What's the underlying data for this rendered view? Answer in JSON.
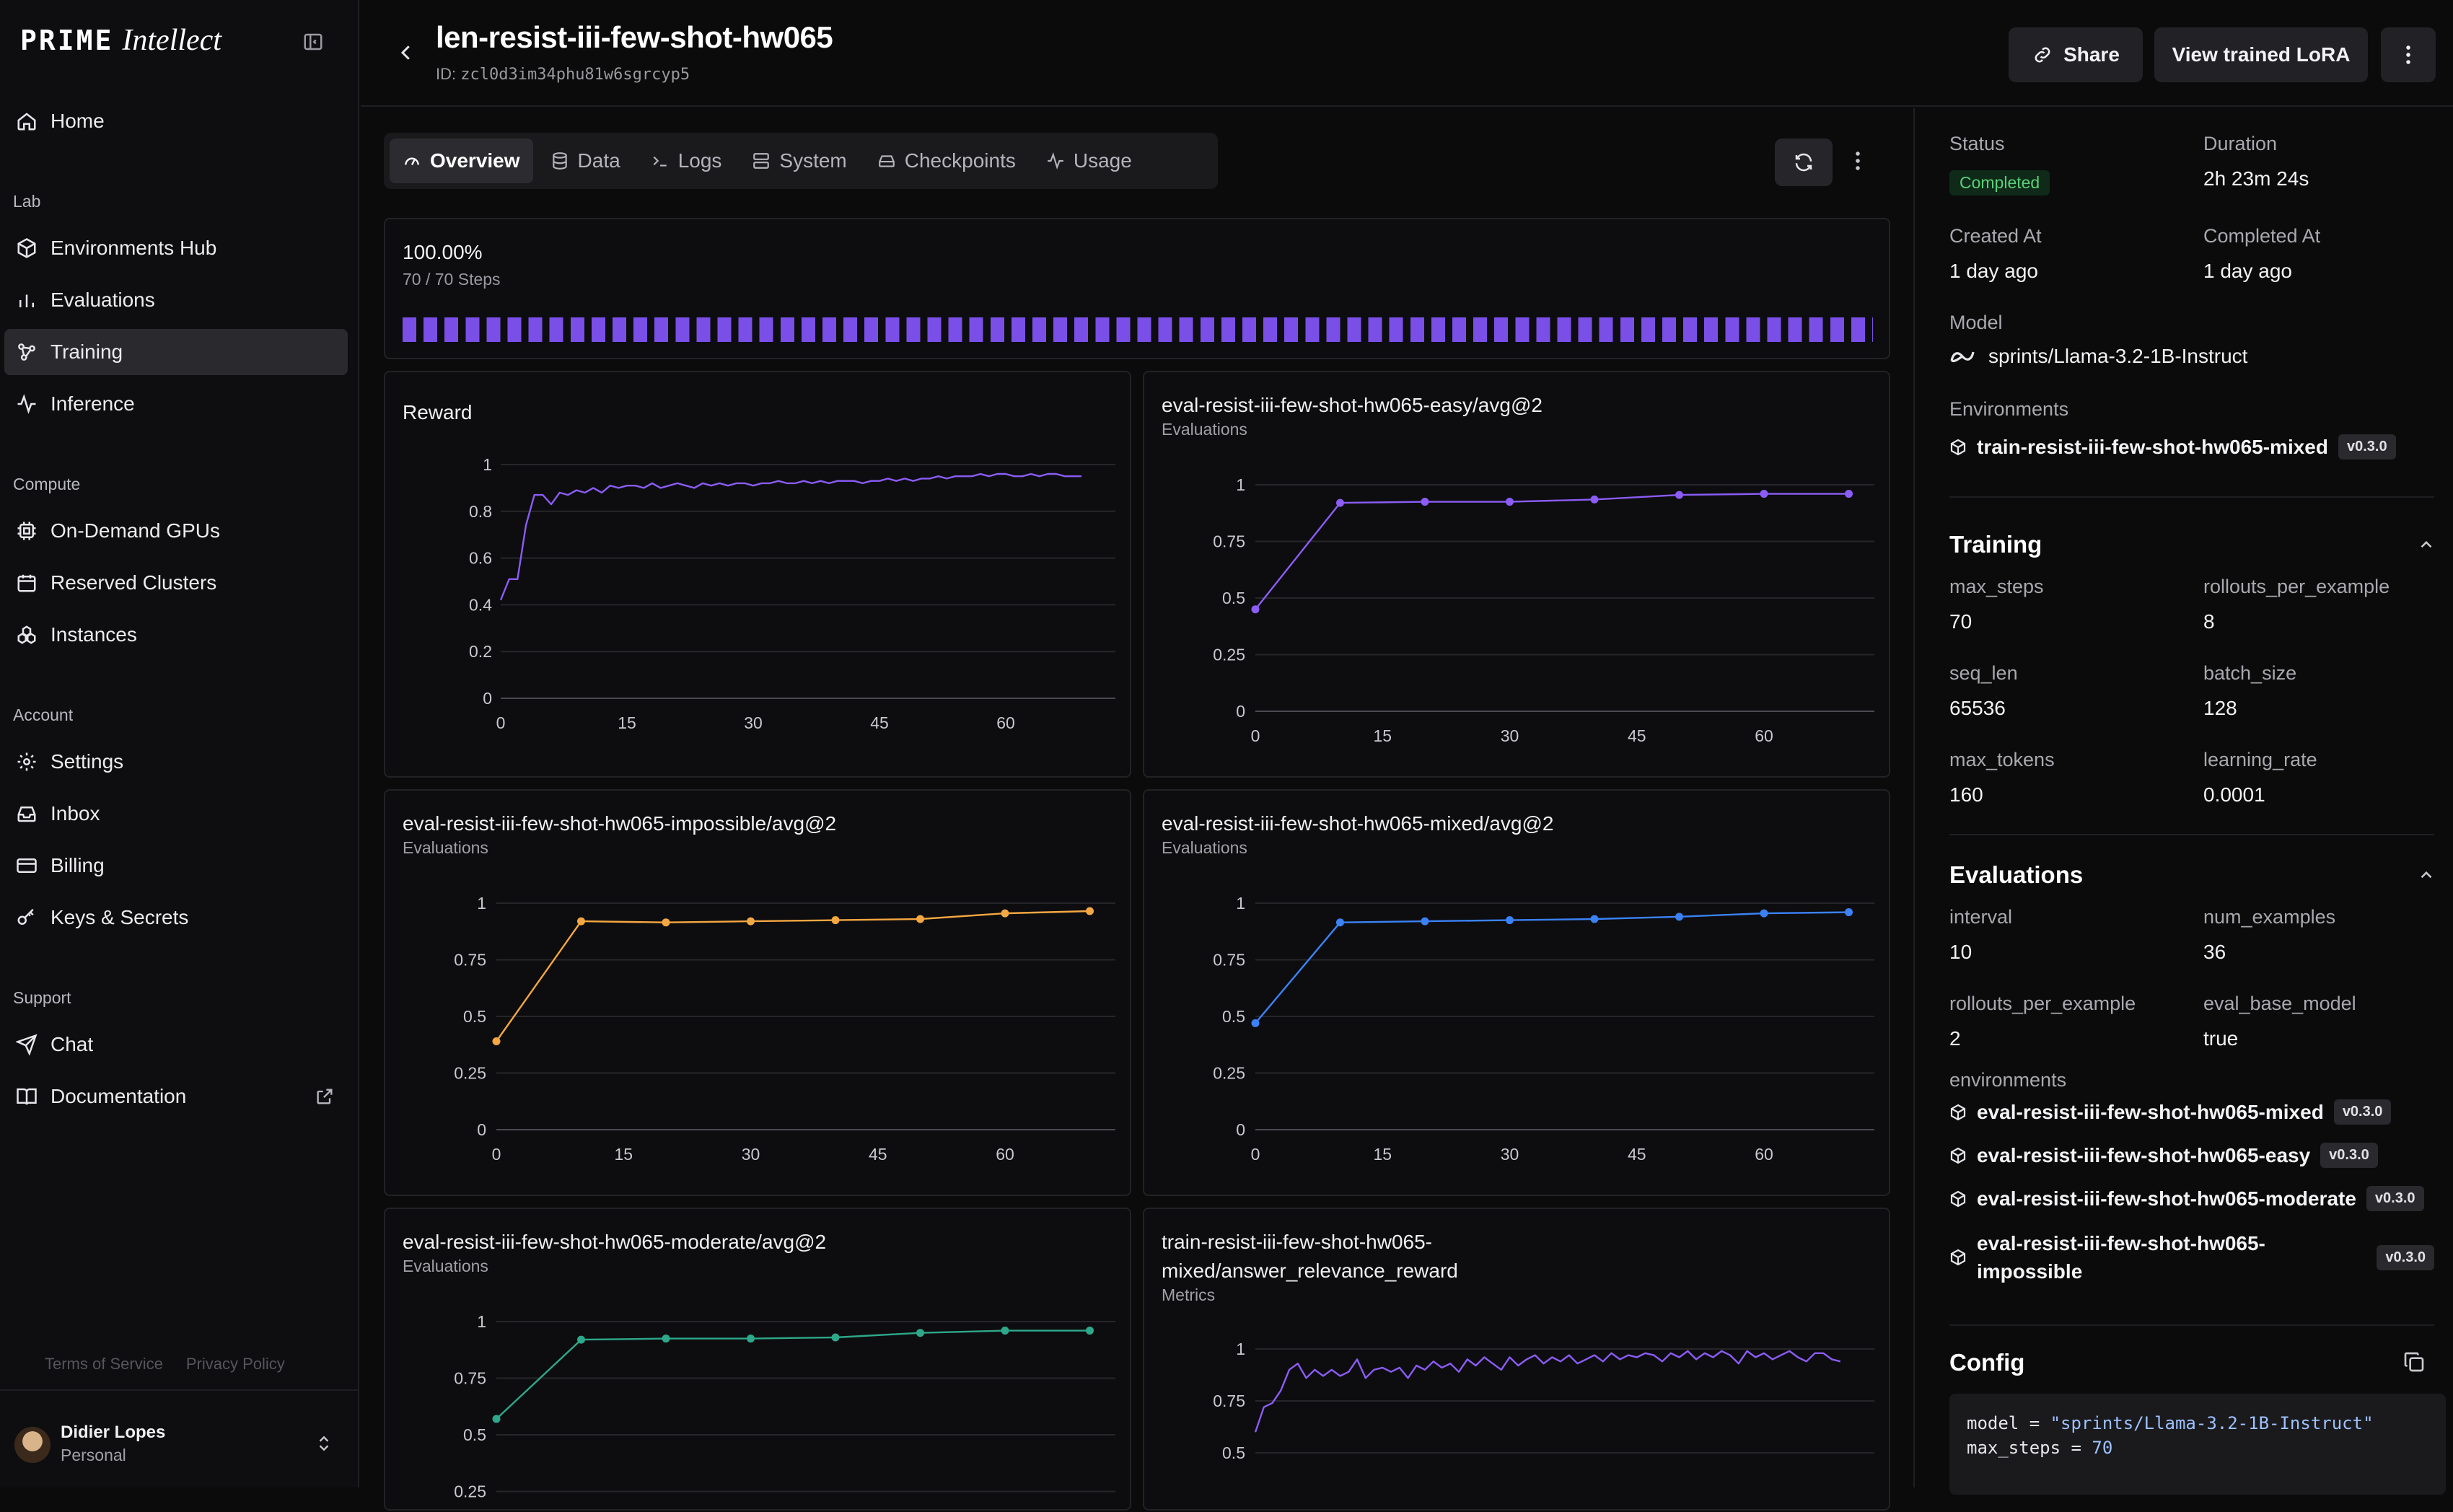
{
  "sidebar": {
    "brand_mono": "PRIME",
    "brand_script": "Intellect",
    "home": "Home",
    "groups": {
      "lab": "Lab",
      "compute": "Compute",
      "account": "Account",
      "support": "Support"
    },
    "items": {
      "environments_hub": "Environments Hub",
      "evaluations": "Evaluations",
      "training": "Training",
      "inference": "Inference",
      "on_demand_gpus": "On-Demand GPUs",
      "reserved_clusters": "Reserved Clusters",
      "instances": "Instances",
      "settings": "Settings",
      "inbox": "Inbox",
      "billing": "Billing",
      "keys_secrets": "Keys & Secrets",
      "chat": "Chat",
      "documentation": "Documentation"
    },
    "footer": {
      "terms": "Terms of Service",
      "privacy": "Privacy Policy"
    },
    "user": {
      "name": "Didier Lopes",
      "plan": "Personal"
    }
  },
  "header": {
    "title": "len-resist-iii-few-shot-hw065",
    "id_prefix": "ID:",
    "id_value": "zcl0d3im34phu81w6sgrcyp5",
    "share": "Share",
    "view_lora": "View trained LoRA"
  },
  "tabs": [
    {
      "label": "Overview",
      "icon": "gauge-icon"
    },
    {
      "label": "Data",
      "icon": "database-icon"
    },
    {
      "label": "Logs",
      "icon": "terminal-icon"
    },
    {
      "label": "System",
      "icon": "server-icon"
    },
    {
      "label": "Checkpoints",
      "icon": "drive-icon"
    },
    {
      "label": "Usage",
      "icon": "activity-icon"
    }
  ],
  "progress": {
    "percent": "100.00%",
    "steps": "70 / 70 Steps",
    "fraction": 1.0
  },
  "charts_meta": {
    "reward": {
      "title": "Reward"
    },
    "easy": {
      "title": "eval-resist-iii-few-shot-hw065-easy/avg@2",
      "subtitle": "Evaluations"
    },
    "impossible": {
      "title": "eval-resist-iii-few-shot-hw065-impossible/avg@2",
      "subtitle": "Evaluations"
    },
    "mixed": {
      "title": "eval-resist-iii-few-shot-hw065-mixed/avg@2",
      "subtitle": "Evaluations"
    },
    "moderate": {
      "title": "eval-resist-iii-few-shot-hw065-moderate/avg@2",
      "subtitle": "Evaluations"
    },
    "relevance": {
      "title_line1": "train-resist-iii-few-shot-hw065-",
      "title_line2": "mixed/answer_relevance_reward",
      "subtitle": "Metrics"
    }
  },
  "chart_data": [
    {
      "id": "reward",
      "type": "line",
      "title": "Reward",
      "color": "#8b5cf6",
      "xticks": [
        0,
        15,
        30,
        45,
        60
      ],
      "xlim": [
        0,
        72
      ],
      "yticks": [
        "0",
        "0.2",
        "0.4",
        "0.6",
        "0.8",
        "1"
      ],
      "ylim": [
        0,
        1
      ],
      "x": [
        0,
        1,
        2,
        3,
        4,
        5,
        6,
        7,
        8,
        9,
        10,
        11,
        12,
        13,
        14,
        15,
        16,
        17,
        18,
        19,
        20,
        21,
        22,
        23,
        24,
        25,
        26,
        27,
        28,
        29,
        30,
        31,
        32,
        33,
        34,
        35,
        36,
        37,
        38,
        39,
        40,
        41,
        42,
        43,
        44,
        45,
        46,
        47,
        48,
        49,
        50,
        51,
        52,
        53,
        54,
        55,
        56,
        57,
        58,
        59,
        60,
        61,
        62,
        63,
        64,
        65,
        66,
        67,
        68,
        69
      ],
      "y": [
        0.42,
        0.51,
        0.51,
        0.74,
        0.87,
        0.87,
        0.83,
        0.88,
        0.87,
        0.89,
        0.88,
        0.9,
        0.88,
        0.91,
        0.9,
        0.91,
        0.91,
        0.9,
        0.92,
        0.9,
        0.91,
        0.92,
        0.91,
        0.9,
        0.92,
        0.91,
        0.92,
        0.91,
        0.92,
        0.92,
        0.91,
        0.92,
        0.92,
        0.93,
        0.92,
        0.92,
        0.93,
        0.92,
        0.93,
        0.92,
        0.93,
        0.93,
        0.93,
        0.92,
        0.93,
        0.93,
        0.94,
        0.93,
        0.94,
        0.93,
        0.94,
        0.94,
        0.95,
        0.94,
        0.95,
        0.95,
        0.95,
        0.96,
        0.95,
        0.96,
        0.96,
        0.95,
        0.95,
        0.96,
        0.95,
        0.96,
        0.96,
        0.95,
        0.95,
        0.95
      ]
    },
    {
      "id": "easy",
      "type": "line",
      "title": "eval-resist-iii-few-shot-hw065-easy/avg@2",
      "color": "#8b5cf6",
      "xticks": [
        0,
        15,
        30,
        45,
        60
      ],
      "xlim": [
        0,
        72
      ],
      "yticks": [
        "0",
        "0.25",
        "0.5",
        "0.75",
        "1"
      ],
      "ylim": [
        0,
        1
      ],
      "x": [
        0,
        10,
        20,
        30,
        40,
        50,
        60,
        70
      ],
      "y": [
        0.45,
        0.92,
        0.925,
        0.925,
        0.935,
        0.955,
        0.96,
        0.96
      ]
    },
    {
      "id": "impossible",
      "type": "line",
      "title": "eval-resist-iii-few-shot-hw065-impossible/avg@2",
      "color": "#f5a742",
      "xticks": [
        0,
        15,
        30,
        45,
        60
      ],
      "xlim": [
        0,
        72
      ],
      "yticks": [
        "0",
        "0.25",
        "0.5",
        "0.75",
        "1"
      ],
      "ylim": [
        0,
        1
      ],
      "x": [
        0,
        10,
        20,
        30,
        40,
        50,
        60,
        70
      ],
      "y": [
        0.39,
        0.92,
        0.915,
        0.92,
        0.925,
        0.93,
        0.955,
        0.965
      ]
    },
    {
      "id": "mixed",
      "type": "line",
      "title": "eval-resist-iii-few-shot-hw065-mixed/avg@2",
      "color": "#3b82f6",
      "xticks": [
        0,
        15,
        30,
        45,
        60
      ],
      "xlim": [
        0,
        72
      ],
      "yticks": [
        "0",
        "0.25",
        "0.5",
        "0.75",
        "1"
      ],
      "ylim": [
        0,
        1
      ],
      "x": [
        0,
        10,
        20,
        30,
        40,
        50,
        60,
        70
      ],
      "y": [
        0.47,
        0.915,
        0.92,
        0.925,
        0.93,
        0.94,
        0.955,
        0.96
      ]
    },
    {
      "id": "moderate",
      "type": "line",
      "title": "eval-resist-iii-few-shot-hw065-moderate/avg@2",
      "color": "#2ea88a",
      "xticks": [
        0,
        15,
        30,
        45,
        60
      ],
      "xlim": [
        0,
        72
      ],
      "yticks": [
        "0",
        "0.25",
        "0.5",
        "0.75",
        "1"
      ],
      "ylim": [
        0,
        1
      ],
      "x": [
        0,
        10,
        20,
        30,
        40,
        50,
        60,
        70
      ],
      "y": [
        0.57,
        0.92,
        0.925,
        0.925,
        0.93,
        0.95,
        0.96,
        0.96
      ]
    },
    {
      "id": "relevance",
      "type": "line",
      "title": "train-resist-iii-few-shot-hw065-mixed/answer_relevance_reward",
      "color": "#8b5cf6",
      "xticks": [
        0,
        15,
        30,
        45,
        60
      ],
      "xlim": [
        0,
        72
      ],
      "yticks": [
        "0.5",
        "0.75",
        "1"
      ],
      "ylim": [
        0.45,
        1.05
      ],
      "x": [
        0,
        1,
        2,
        3,
        4,
        5,
        6,
        7,
        8,
        9,
        10,
        11,
        12,
        13,
        14,
        15,
        16,
        17,
        18,
        19,
        20,
        21,
        22,
        23,
        24,
        25,
        26,
        27,
        28,
        29,
        30,
        31,
        32,
        33,
        34,
        35,
        36,
        37,
        38,
        39,
        40,
        41,
        42,
        43,
        44,
        45,
        46,
        47,
        48,
        49,
        50,
        51,
        52,
        53,
        54,
        55,
        56,
        57,
        58,
        59,
        60,
        61,
        62,
        63,
        64,
        65,
        66,
        67,
        68,
        69
      ],
      "y": [
        0.6,
        0.72,
        0.74,
        0.8,
        0.9,
        0.93,
        0.86,
        0.9,
        0.87,
        0.9,
        0.87,
        0.89,
        0.95,
        0.86,
        0.9,
        0.91,
        0.89,
        0.91,
        0.86,
        0.92,
        0.9,
        0.94,
        0.91,
        0.93,
        0.89,
        0.95,
        0.92,
        0.96,
        0.93,
        0.9,
        0.96,
        0.92,
        0.95,
        0.97,
        0.93,
        0.96,
        0.94,
        0.97,
        0.93,
        0.95,
        0.97,
        0.94,
        0.98,
        0.95,
        0.97,
        0.96,
        0.98,
        0.97,
        0.94,
        0.98,
        0.96,
        0.99,
        0.95,
        0.98,
        0.96,
        0.99,
        0.97,
        0.93,
        0.99,
        0.96,
        0.98,
        0.95,
        0.97,
        0.99,
        0.96,
        0.94,
        0.98,
        0.98,
        0.95,
        0.94
      ]
    }
  ],
  "details": {
    "status_label": "Status",
    "status_value": "Completed",
    "duration_label": "Duration",
    "duration_value": "2h 23m 24s",
    "created_label": "Created At",
    "created_value": "1 day ago",
    "completed_label": "Completed At",
    "completed_value": "1 day ago",
    "model_label": "Model",
    "model_value": "sprints/Llama-3.2-1B-Instruct",
    "environments_label": "Environments",
    "train_env": {
      "name": "train-resist-iii-few-shot-hw065-mixed",
      "version": "v0.3.0"
    }
  },
  "training": {
    "title": "Training",
    "max_steps_label": "max_steps",
    "max_steps": "70",
    "rollouts_label": "rollouts_per_example",
    "rollouts": "8",
    "seq_len_label": "seq_len",
    "seq_len": "65536",
    "batch_size_label": "batch_size",
    "batch_size": "128",
    "max_tokens_label": "max_tokens",
    "max_tokens": "160",
    "lr_label": "learning_rate",
    "lr": "0.0001"
  },
  "evaluations": {
    "title": "Evaluations",
    "interval_label": "interval",
    "interval": "10",
    "num_examples_label": "num_examples",
    "num_examples": "36",
    "rollouts_label": "rollouts_per_example",
    "rollouts": "2",
    "base_model_label": "eval_base_model",
    "base_model": "true",
    "environments_label": "environments",
    "envs": [
      {
        "name": "eval-resist-iii-few-shot-hw065-mixed",
        "version": "v0.3.0"
      },
      {
        "name": "eval-resist-iii-few-shot-hw065-easy",
        "version": "v0.3.0"
      },
      {
        "name": "eval-resist-iii-few-shot-hw065-moderate",
        "version": "v0.3.0"
      },
      {
        "name_line1": "eval-resist-iii-few-shot-hw065-",
        "name_line2": "impossible",
        "version": "v0.3.0"
      }
    ]
  },
  "config": {
    "title": "Config",
    "line1_key": "model = ",
    "line1_val": "\"sprints/Llama-3.2-1B-Instruct\"",
    "line2_key": "max_steps = ",
    "line2_val": "70"
  }
}
